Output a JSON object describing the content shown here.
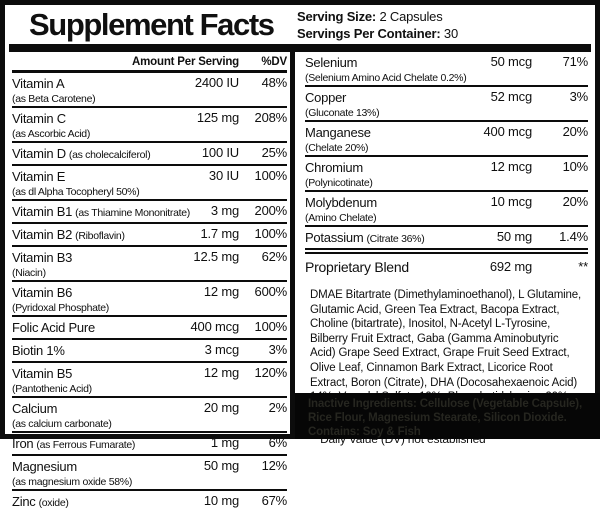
{
  "colors": {
    "ink": "#0c0c0c",
    "paper": "#ffffff",
    "inactive_bg": "#060606",
    "inactive_text": "#262620"
  },
  "header": {
    "title": "Supplement Facts",
    "serving_size_label": "Serving Size:",
    "serving_size_value": "2 Capsules",
    "servings_per_container_label": "Servings Per Container:",
    "servings_per_container_value": "30"
  },
  "left_column": {
    "amount_header": "Amount Per Serving",
    "dv_header": "%DV",
    "rows": [
      {
        "name": "Vitamin A",
        "sub": "(as Beta Carotene)",
        "sub_inline": false,
        "amount": "2400 IU",
        "dv": "48%"
      },
      {
        "name": "Vitamin C",
        "sub": "(as Ascorbic Acid)",
        "sub_inline": false,
        "amount": "125 mg",
        "dv": "208%"
      },
      {
        "name": "Vitamin D",
        "sub": "(as cholecalciferol)",
        "sub_inline": true,
        "amount": "100 IU",
        "dv": "25%"
      },
      {
        "name": "Vitamin E",
        "sub": "(as dl Alpha Tocopheryl 50%)",
        "sub_inline": false,
        "amount": "30 IU",
        "dv": "100%"
      },
      {
        "name": "Vitamin B1",
        "sub": "(as Thiamine Mononitrate)",
        "sub_inline": true,
        "amount": "3 mg",
        "dv": "200%"
      },
      {
        "name": "Vitamin B2",
        "sub": "(Riboflavin)",
        "sub_inline": true,
        "amount": "1.7 mg",
        "dv": "100%"
      },
      {
        "name": "Vitamin B3",
        "sub": "(Niacin)",
        "sub_inline": false,
        "amount": "12.5 mg",
        "dv": "62%"
      },
      {
        "name": "Vitamin B6",
        "sub": "(Pyridoxal Phosphate)",
        "sub_inline": false,
        "amount": "12 mg",
        "dv": "600%"
      },
      {
        "name": "Folic Acid Pure",
        "amount": "400 mcg",
        "dv": "100%"
      },
      {
        "name": "Biotin 1%",
        "amount": "3 mcg",
        "dv": "3%"
      },
      {
        "name": "Vitamin B5",
        "sub": "(Pantothenic Acid)",
        "sub_inline": false,
        "amount": "12 mg",
        "dv": "120%"
      },
      {
        "name": "Calcium",
        "sub": "(as calcium carbonate)",
        "sub_inline": false,
        "amount": "20 mg",
        "dv": "2%"
      },
      {
        "name": "Iron",
        "sub": "(as Ferrous Fumarate)",
        "sub_inline": true,
        "amount": "1 mg",
        "dv": "6%"
      },
      {
        "name": "Magnesium",
        "sub": "(as magnesium oxide 58%)",
        "sub_inline": false,
        "amount": "50 mg",
        "dv": "12%"
      },
      {
        "name": "Zinc",
        "sub": "(oxide)",
        "sub_inline": true,
        "amount": "10 mg",
        "dv": "67%",
        "last": true
      }
    ]
  },
  "right_column": {
    "rows": [
      {
        "name": "Selenium",
        "sub": "(Selenium Amino Acid Chelate 0.2%)",
        "sub_inline": false,
        "amount": "50 mcg",
        "dv": "71%"
      },
      {
        "name": "Copper",
        "sub": "(Gluconate 13%)",
        "sub_inline": false,
        "amount": "52 mcg",
        "dv": "3%"
      },
      {
        "name": "Manganese",
        "sub": "(Chelate 20%)",
        "sub_inline": false,
        "amount": "400 mcg",
        "dv": "20%"
      },
      {
        "name": "Chromium",
        "sub": "(Polynicotinate)",
        "sub_inline": false,
        "amount": "12 mcg",
        "dv": "10%"
      },
      {
        "name": "Molybdenum",
        "sub": "(Amino Chelate)",
        "sub_inline": false,
        "amount": "10 mcg",
        "dv": "20%"
      },
      {
        "name": "Potassium",
        "sub": "(Citrate 36%)",
        "sub_inline": true,
        "amount": "50 mg",
        "dv": "1.4%"
      },
      {
        "name": "Proprietary Blend",
        "amount": "692 mg",
        "dv": "**",
        "rule_before": true,
        "blend": true,
        "last": true
      }
    ],
    "blend_description": "DMAE Bitartrate (Dimethylaminoethanol), L Glutamine, Glutamic Acid, Green Tea Extract, Bacopa Extract, Choline (bitartrate), Inositol, N-Acetyl L-Tyrosine, Bilberry Fruit Extract, Gaba (Gamma Aminobutyric Acid) Grape Seed Extract, Grape Fruit Seed Extract, Olive Leaf, Cinnamon Bark Extract, Licorice Root Extract, Boron (Citrate), DHA (Docosahexaenoic Acid) 14%, Vanadyl Sulfate 19%, Phosphatidylserine 20%, Huperzine A",
    "dv_note": "** Daily Value (DV) not established",
    "inactive_ingredients": "Inactive Ingredients: Cellulose (Vegetable Capsule), Rice Flour, Magnesium Stearate, Silicon Dioxide. Contains: Soy & Fish"
  }
}
